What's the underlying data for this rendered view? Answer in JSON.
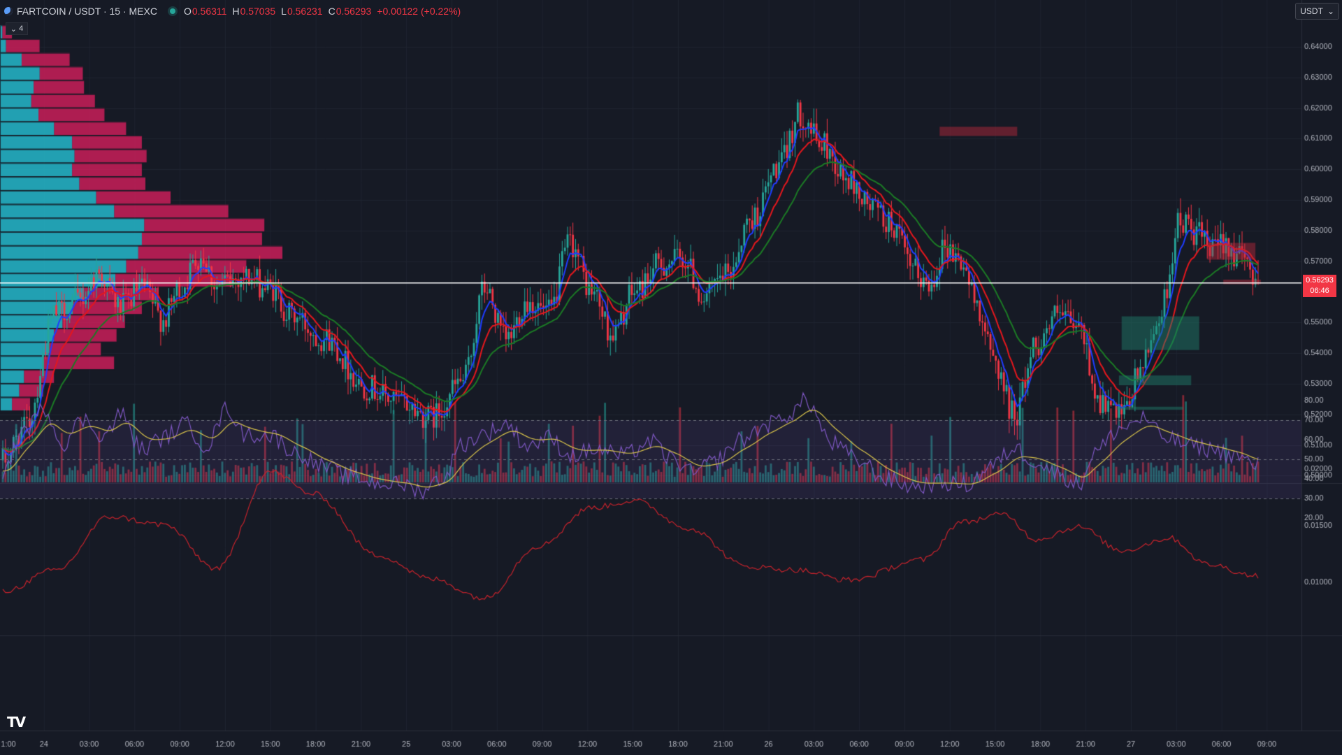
{
  "header": {
    "symbol": "FARTCOIN / USDT · 15 · MEXC",
    "ohlc": [
      {
        "k": "O",
        "v": "0.56311"
      },
      {
        "k": "H",
        "v": "0.57035"
      },
      {
        "k": "L",
        "v": "0.56231"
      },
      {
        "k": "C",
        "v": "0.56293"
      }
    ],
    "change": "+0.00122 (+0.22%)",
    "collapse_label": "4"
  },
  "currency_button": "USDT",
  "last_price": "0.56293",
  "countdown": "06:46",
  "colors": {
    "background": "#161a25",
    "up": "#26a69a",
    "down": "#f23645",
    "ma_fast": "#1e3cff",
    "ma_mid": "#e5171d",
    "ma_slow": "#1b7a25",
    "rsi": "#7e57c2",
    "rsi_ma": "#d8c34a",
    "volatility": "#c8232c"
  },
  "price_axis": {
    "ticks": [
      "0.64000",
      "0.63000",
      "0.62000",
      "0.61000",
      "0.60000",
      "0.59000",
      "0.58000",
      "0.57000",
      "0.55000",
      "0.54000",
      "0.53000",
      "0.52000",
      "0.51000",
      "0.50000"
    ]
  },
  "rsi_axis": {
    "ticks": [
      "80.00",
      "70.00",
      "60.00",
      "50.00",
      "40.00",
      "30.00",
      "20.00"
    ]
  },
  "vol_axis": {
    "ticks": [
      "0.02000",
      "0.01500",
      "0.01000"
    ]
  },
  "time_axis": {
    "ticks": [
      "1:00",
      "24",
      "03:00",
      "06:00",
      "09:00",
      "12:00",
      "15:00",
      "18:00",
      "21:00",
      "25",
      "03:00",
      "06:00",
      "09:00",
      "12:00",
      "15:00",
      "18:00",
      "21:00",
      "26",
      "03:00",
      "06:00",
      "09:00",
      "12:00",
      "15:00",
      "18:00",
      "21:00",
      "27",
      "03:00",
      "06:00",
      "09:00"
    ]
  },
  "chart_data": {
    "type": "candlestick",
    "anchors_price": [
      [
        0,
        0.505
      ],
      [
        8,
        0.515
      ],
      [
        20,
        0.553
      ],
      [
        28,
        0.557
      ],
      [
        36,
        0.566
      ],
      [
        44,
        0.555
      ],
      [
        52,
        0.561
      ],
      [
        60,
        0.551
      ],
      [
        66,
        0.561
      ],
      [
        74,
        0.572
      ],
      [
        80,
        0.562
      ],
      [
        90,
        0.565
      ],
      [
        100,
        0.561
      ],
      [
        108,
        0.552
      ],
      [
        120,
        0.545
      ],
      [
        136,
        0.529
      ],
      [
        148,
        0.524
      ],
      [
        160,
        0.519
      ],
      [
        172,
        0.531
      ],
      [
        180,
        0.561
      ],
      [
        188,
        0.544
      ],
      [
        196,
        0.557
      ],
      [
        204,
        0.553
      ],
      [
        212,
        0.576
      ],
      [
        220,
        0.56
      ],
      [
        228,
        0.546
      ],
      [
        236,
        0.56
      ],
      [
        246,
        0.569
      ],
      [
        254,
        0.571
      ],
      [
        262,
        0.558
      ],
      [
        270,
        0.565
      ],
      [
        280,
        0.584
      ],
      [
        290,
        0.601
      ],
      [
        298,
        0.618
      ],
      [
        306,
        0.608
      ],
      [
        316,
        0.596
      ],
      [
        324,
        0.588
      ],
      [
        332,
        0.582
      ],
      [
        340,
        0.567
      ],
      [
        346,
        0.562
      ],
      [
        352,
        0.575
      ],
      [
        358,
        0.57
      ],
      [
        364,
        0.556
      ],
      [
        370,
        0.538
      ],
      [
        378,
        0.52
      ],
      [
        386,
        0.543
      ],
      [
        394,
        0.552
      ],
      [
        402,
        0.548
      ],
      [
        410,
        0.524
      ],
      [
        418,
        0.519
      ],
      [
        426,
        0.536
      ],
      [
        432,
        0.552
      ],
      [
        440,
        0.583
      ],
      [
        446,
        0.579
      ],
      [
        452,
        0.573
      ],
      [
        456,
        0.577
      ],
      [
        462,
        0.571
      ],
      [
        468,
        0.566
      ]
    ],
    "rsi_anchors": [
      [
        0,
        44
      ],
      [
        8,
        65
      ],
      [
        16,
        76
      ],
      [
        22,
        58
      ],
      [
        30,
        70
      ],
      [
        38,
        62
      ],
      [
        44,
        73
      ],
      [
        52,
        55
      ],
      [
        60,
        61
      ],
      [
        68,
        68
      ],
      [
        76,
        57
      ],
      [
        84,
        76
      ],
      [
        90,
        63
      ],
      [
        100,
        62
      ],
      [
        110,
        53
      ],
      [
        120,
        46
      ],
      [
        130,
        41
      ],
      [
        140,
        38
      ],
      [
        150,
        37
      ],
      [
        156,
        34
      ],
      [
        164,
        40
      ],
      [
        172,
        58
      ],
      [
        180,
        63
      ],
      [
        188,
        68
      ],
      [
        196,
        57
      ],
      [
        204,
        61
      ],
      [
        212,
        52
      ],
      [
        222,
        55
      ],
      [
        232,
        52
      ],
      [
        242,
        59
      ],
      [
        250,
        50
      ],
      [
        258,
        43
      ],
      [
        266,
        49
      ],
      [
        276,
        60
      ],
      [
        286,
        68
      ],
      [
        294,
        73
      ],
      [
        300,
        80
      ],
      [
        310,
        58
      ],
      [
        320,
        49
      ],
      [
        330,
        40
      ],
      [
        340,
        36
      ],
      [
        350,
        38
      ],
      [
        360,
        37
      ],
      [
        370,
        47
      ],
      [
        378,
        56
      ],
      [
        384,
        50
      ],
      [
        394,
        43
      ],
      [
        402,
        37
      ],
      [
        408,
        54
      ],
      [
        418,
        66
      ],
      [
        426,
        71
      ],
      [
        434,
        61
      ],
      [
        444,
        57
      ],
      [
        452,
        55
      ],
      [
        460,
        52
      ],
      [
        468,
        47
      ]
    ],
    "vol_anchors": [
      [
        0,
        0.0092
      ],
      [
        20,
        0.0111
      ],
      [
        40,
        0.0158
      ],
      [
        60,
        0.0151
      ],
      [
        80,
        0.0112
      ],
      [
        100,
        0.0198
      ],
      [
        116,
        0.0178
      ],
      [
        140,
        0.0124
      ],
      [
        160,
        0.0103
      ],
      [
        180,
        0.0086
      ],
      [
        200,
        0.0132
      ],
      [
        220,
        0.0166
      ],
      [
        236,
        0.0172
      ],
      [
        256,
        0.0148
      ],
      [
        278,
        0.0114
      ],
      [
        296,
        0.0111
      ],
      [
        316,
        0.0102
      ],
      [
        344,
        0.012
      ],
      [
        358,
        0.0153
      ],
      [
        374,
        0.016
      ],
      [
        386,
        0.0138
      ],
      [
        402,
        0.0149
      ],
      [
        418,
        0.0128
      ],
      [
        436,
        0.0139
      ],
      [
        450,
        0.0116
      ],
      [
        468,
        0.0106
      ]
    ],
    "volume_profile": {
      "rows_top_price": 0.647,
      "row_height_price": 0.0045,
      "buy": [
        2,
        5,
        18,
        33,
        28,
        26,
        32,
        45,
        60,
        62,
        60,
        66,
        80,
        95,
        120,
        118,
        115,
        105,
        96,
        70,
        60,
        52,
        45,
        40,
        35,
        20,
        16,
        10
      ],
      "sell": [
        8,
        28,
        40,
        36,
        42,
        53,
        55,
        60,
        58,
        60,
        58,
        55,
        62,
        95,
        100,
        100,
        120,
        100,
        98,
        62,
        58,
        52,
        52,
        44,
        60,
        25,
        20,
        15
      ]
    },
    "rsi_band": [
      30,
      70
    ],
    "zones": [
      {
        "kind": "supply",
        "p1": 0.6139,
        "p2": 0.6109,
        "i1": 350,
        "i2": 379
      },
      {
        "kind": "supply",
        "p1": 0.576,
        "p2": 0.5705,
        "i1": 450,
        "i2": 468
      },
      {
        "kind": "supply",
        "p1": 0.564,
        "p2": 0.5625,
        "i1": 456,
        "i2": 470
      },
      {
        "kind": "demand",
        "p1": 0.552,
        "p2": 0.541,
        "i1": 418,
        "i2": 447
      },
      {
        "kind": "demand",
        "p1": 0.5327,
        "p2": 0.5295,
        "i1": 417,
        "i2": 444
      },
      {
        "kind": "demand",
        "p1": 0.5225,
        "p2": 0.5215,
        "i1": 416,
        "i2": 441
      }
    ]
  }
}
